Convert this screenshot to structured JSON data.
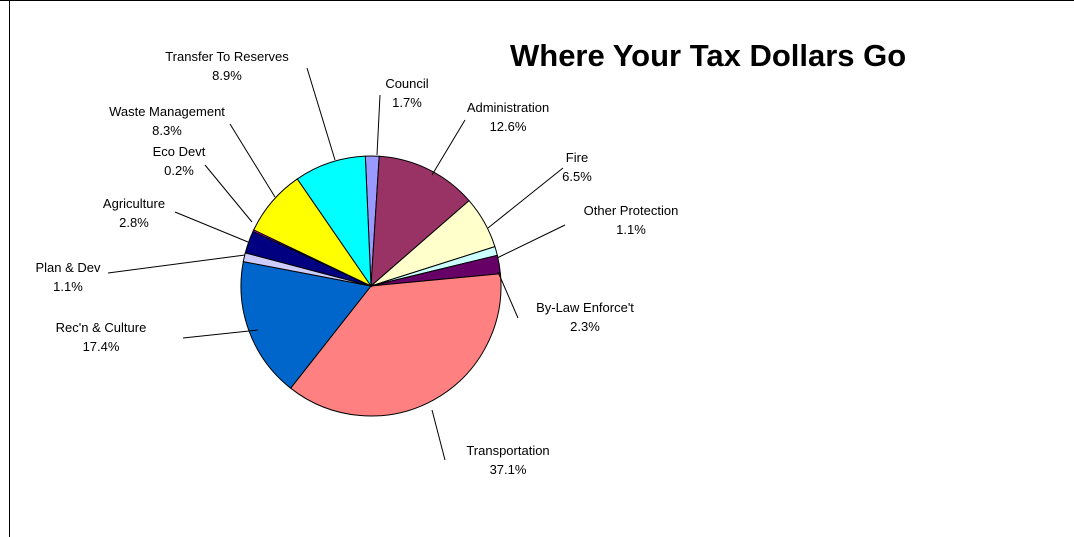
{
  "chart_data": {
    "type": "pie",
    "title": "Where Your Tax Dollars Go",
    "slices": [
      {
        "label": "Council",
        "value": 1.7,
        "value_label": "1.7%",
        "color": "#9999ff"
      },
      {
        "label": "Administration",
        "value": 12.6,
        "value_label": "12.6%",
        "color": "#993366"
      },
      {
        "label": "Fire",
        "value": 6.5,
        "value_label": "6.5%",
        "color": "#ffffcc"
      },
      {
        "label": "Other Protection",
        "value": 1.1,
        "value_label": "1.1%",
        "color": "#ccffff"
      },
      {
        "label": "By-Law Enforce't",
        "value": 2.3,
        "value_label": "2.3%",
        "color": "#660066"
      },
      {
        "label": "Transportation",
        "value": 37.1,
        "value_label": "37.1%",
        "color": "#ff8080"
      },
      {
        "label": "Rec'n & Culture",
        "value": 17.4,
        "value_label": "17.4%",
        "color": "#0066cc"
      },
      {
        "label": "Plan & Dev",
        "value": 1.1,
        "value_label": "1.1%",
        "color": "#ccccff"
      },
      {
        "label": "Agriculture",
        "value": 2.8,
        "value_label": "2.8%",
        "color": "#000080"
      },
      {
        "label": "Eco Devt",
        "value": 0.2,
        "value_label": "0.2%",
        "color": "#ff00ff"
      },
      {
        "label": "Waste Management",
        "value": 8.3,
        "value_label": "8.3%",
        "color": "#ffff00"
      },
      {
        "label": "Transfer To Reserves",
        "value": 8.9,
        "value_label": "8.9%",
        "color": "#00ffff"
      }
    ]
  }
}
